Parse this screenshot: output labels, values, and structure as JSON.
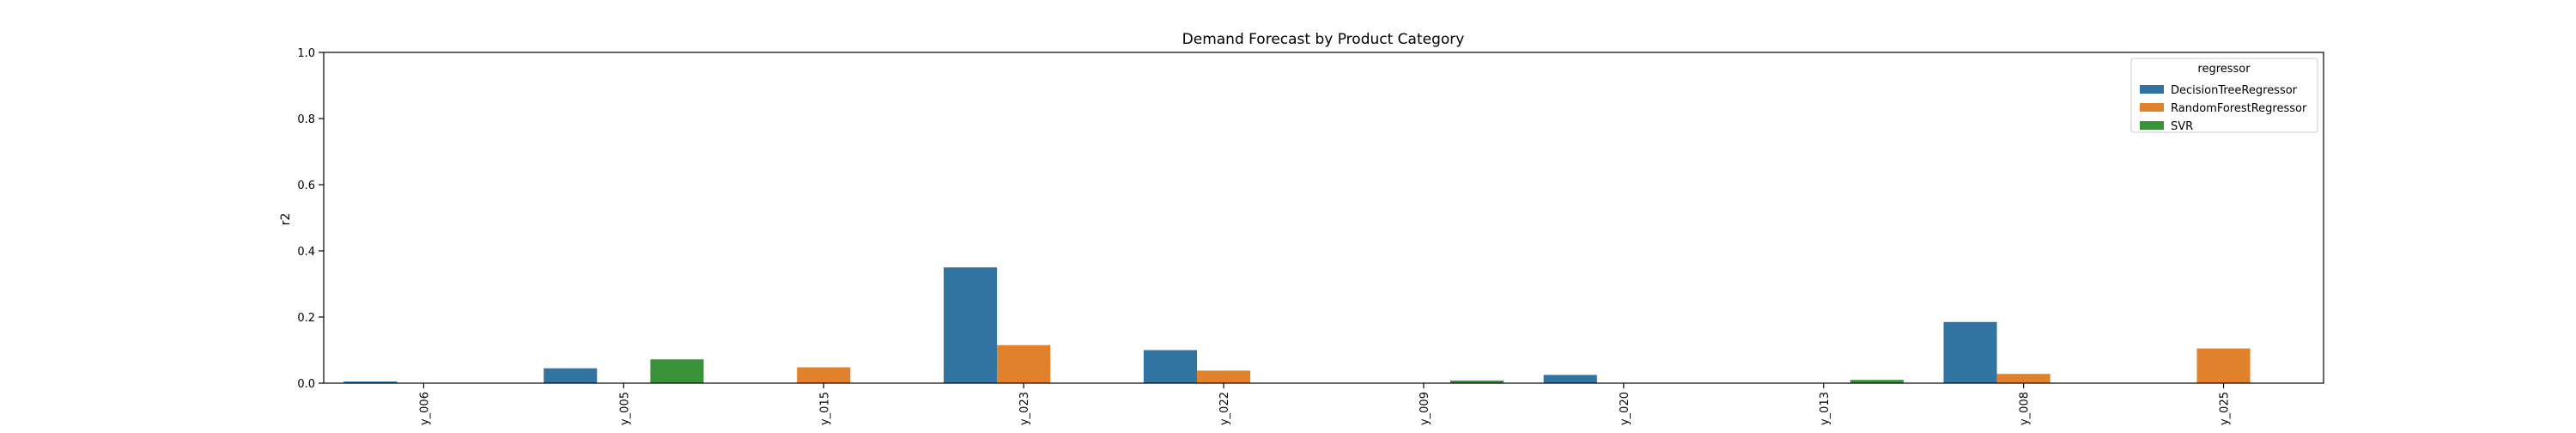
{
  "chart_data": {
    "type": "bar",
    "title": "Demand Forecast by Product Category",
    "xlabel": "",
    "ylabel": "r2",
    "ylim": [
      0,
      1.0
    ],
    "yticks": [
      "0.0",
      "0.2",
      "0.4",
      "0.6",
      "0.8",
      "1.0"
    ],
    "grid": false,
    "legend": {
      "title": "regressor",
      "placement": "top-right"
    },
    "categories": [
      "y_006",
      "y_005",
      "y_015",
      "y_023",
      "y_022",
      "y_009",
      "y_020",
      "y_013",
      "y_008",
      "y_025"
    ],
    "series": [
      {
        "name": "DecisionTreeRegressor",
        "color": "#3274a1",
        "values": [
          0.005,
          0.045,
          0,
          0.35,
          0.1,
          0,
          0.025,
          0,
          0.185,
          0
        ]
      },
      {
        "name": "RandomForestRegressor",
        "color": "#e1812c",
        "values": [
          0,
          0,
          0.048,
          0.115,
          0.038,
          0,
          0,
          0,
          0.028,
          0.105
        ]
      },
      {
        "name": "SVR",
        "color": "#3a923a",
        "values": [
          0,
          0.072,
          0,
          0,
          0,
          0.008,
          0,
          0.01,
          0,
          0
        ]
      }
    ]
  }
}
